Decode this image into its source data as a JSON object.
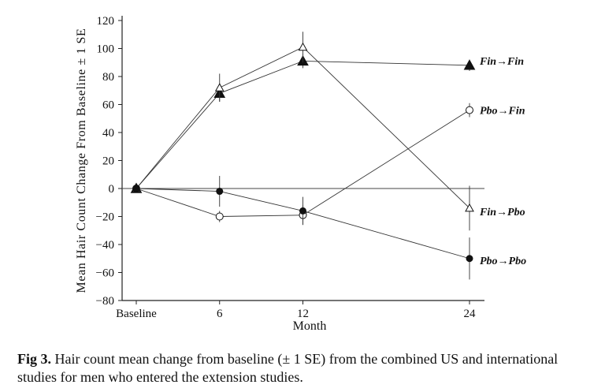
{
  "chart_data": {
    "type": "line",
    "title": "",
    "xlabel": "Month",
    "ylabel": "Mean Hair Count Change From Baseline ± 1 SE",
    "categories": [
      "Baseline",
      "6",
      "12",
      "24"
    ],
    "x": [
      0,
      6,
      12,
      24
    ],
    "ylim": [
      -80,
      120
    ],
    "yticks": [
      -80,
      -60,
      -40,
      -20,
      0,
      20,
      40,
      60,
      80,
      100,
      120
    ],
    "grid": false,
    "reference_line_y": 0,
    "legend": "inline labels at right of series",
    "series": [
      {
        "name": "Fin→Fin",
        "marker": "filled-triangle",
        "values": [
          0,
          68,
          91,
          88
        ],
        "se": [
          0,
          6,
          5,
          4
        ]
      },
      {
        "name": "Fin→Pbo",
        "marker": "open-triangle",
        "values": [
          0,
          72,
          101,
          -14
        ],
        "se": [
          0,
          10,
          11,
          16
        ]
      },
      {
        "name": "Pbo→Fin",
        "marker": "open-circle",
        "values": [
          0,
          -20,
          -19,
          56
        ],
        "se": [
          0,
          4,
          7,
          5
        ]
      },
      {
        "name": "Pbo→Pbo",
        "marker": "filled-circle",
        "values": [
          0,
          -2,
          -16,
          -50
        ],
        "se": [
          0,
          11,
          10,
          15
        ]
      }
    ]
  },
  "caption": {
    "label": "Fig 3.",
    "text": " Hair count mean change from baseline (± 1 SE) from the combined US and international studies for men who entered the extension studies."
  }
}
